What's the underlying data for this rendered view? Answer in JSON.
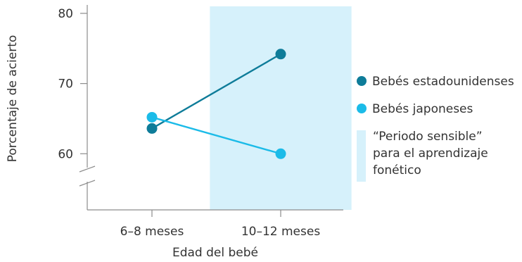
{
  "chart_data": {
    "type": "line",
    "x_categories": [
      "6–8 meses",
      "10–12 meses"
    ],
    "xlabel": "Edad del bebé",
    "ylabel": "Porcentaje de acierto",
    "ylim": [
      52,
      81
    ],
    "yticks": [
      60,
      70,
      80
    ],
    "axis_break": true,
    "series": [
      {
        "name": "Bebés estadounidenses",
        "color": "#0e7c99",
        "values": [
          63.6,
          74.2
        ]
      },
      {
        "name": "Bebés japoneses",
        "color": "#1bbbe8",
        "values": [
          65.2,
          60.0
        ]
      }
    ],
    "shaded_band": {
      "label_lines": [
        "“Periodo sensible”",
        "para el aprendizaje",
        "fonético"
      ],
      "color": "#d6f1fb",
      "x_range": [
        0.45,
        1.55
      ]
    },
    "legend_position": "right"
  }
}
